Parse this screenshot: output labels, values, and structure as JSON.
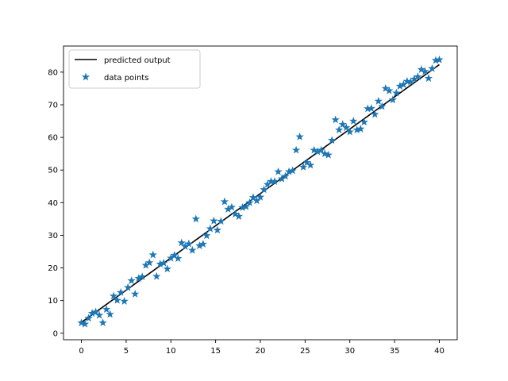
{
  "chart_data": {
    "type": "scatter",
    "title": "",
    "xlabel": "",
    "ylabel": "",
    "xlim": [
      -2,
      42
    ],
    "ylim": [
      -2,
      88
    ],
    "xticks": [
      0,
      5,
      10,
      15,
      20,
      25,
      30,
      35,
      40
    ],
    "yticks": [
      0,
      10,
      20,
      30,
      40,
      50,
      60,
      70,
      80
    ],
    "grid": false,
    "legend_position": "top-left",
    "series": [
      {
        "name": "predicted output",
        "type": "line",
        "color": "#000000",
        "x": [
          0,
          40
        ],
        "y": [
          3.3,
          82.3
        ]
      },
      {
        "name": "data points",
        "type": "scatter",
        "marker": "star",
        "color": "#1f77b4",
        "x": [
          0.0,
          0.4,
          0.8,
          1.2,
          1.6,
          2.0,
          2.4,
          2.8,
          3.2,
          3.6,
          4.0,
          4.4,
          4.8,
          5.2,
          5.6,
          6.0,
          6.4,
          6.8,
          7.2,
          7.6,
          8.0,
          8.4,
          8.8,
          9.2,
          9.6,
          10.0,
          10.4,
          10.8,
          11.2,
          11.6,
          12.0,
          12.4,
          12.8,
          13.2,
          13.6,
          14.0,
          14.4,
          14.8,
          15.2,
          15.6,
          16.0,
          16.4,
          16.8,
          17.2,
          17.6,
          18.0,
          18.4,
          18.8,
          19.2,
          19.6,
          20.0,
          20.4,
          20.8,
          21.2,
          21.6,
          22.0,
          22.4,
          22.8,
          23.2,
          23.6,
          24.0,
          24.4,
          24.8,
          25.2,
          25.6,
          26.0,
          26.4,
          26.8,
          27.2,
          27.6,
          28.0,
          28.4,
          28.8,
          29.2,
          29.6,
          30.0,
          30.4,
          30.8,
          31.2,
          31.6,
          32.0,
          32.4,
          32.8,
          33.2,
          33.6,
          34.0,
          34.4,
          34.8,
          35.2,
          35.6,
          36.0,
          36.4,
          36.8,
          37.2,
          37.6,
          38.0,
          38.4,
          38.8,
          39.2,
          39.6,
          40.0
        ],
        "y": [
          3.2,
          2.8,
          4.6,
          6.1,
          6.5,
          5.5,
          3.2,
          7.3,
          5.8,
          11.4,
          10.1,
          12.5,
          9.8,
          14.0,
          16.1,
          12.0,
          16.8,
          17.3,
          20.8,
          21.6,
          24.0,
          17.4,
          21.2,
          21.5,
          19.7,
          23.0,
          23.9,
          22.9,
          27.7,
          26.6,
          27.4,
          25.4,
          35.0,
          26.8,
          27.3,
          29.9,
          32.0,
          34.4,
          31.6,
          34.3,
          40.3,
          38.0,
          38.6,
          36.5,
          35.8,
          38.5,
          38.8,
          40.0,
          41.6,
          40.6,
          41.7,
          44.0,
          45.6,
          46.5,
          46.5,
          49.5,
          47.3,
          48.1,
          49.5,
          49.8,
          56.1,
          60.2,
          50.9,
          52.3,
          51.5,
          56.1,
          55.6,
          56.1,
          55.0,
          54.6,
          59.1,
          65.4,
          62.3,
          64.0,
          63.0,
          61.7,
          65.0,
          62.3,
          62.6,
          64.7,
          68.8,
          68.9,
          67.1,
          71.1,
          69.5,
          75.0,
          74.3,
          71.5,
          73.6,
          75.7,
          76.2,
          77.2,
          77.0,
          77.9,
          78.6,
          80.8,
          80.2,
          78.1,
          81.1,
          83.6,
          83.8
        ]
      }
    ]
  }
}
